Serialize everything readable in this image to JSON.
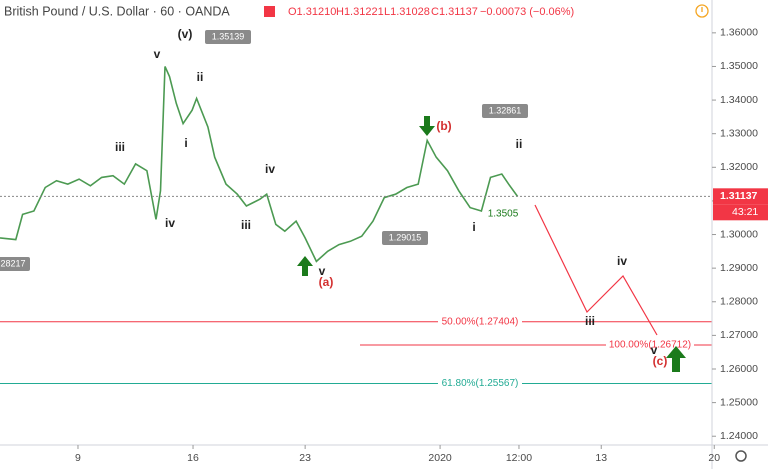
{
  "chart_data": {
    "type": "line",
    "title": "British Pound / U.S. Dollar · 60 · OANDA",
    "ohlc": [
      "O1.31210",
      "H1.31221",
      "L1.31028",
      "C1.31137",
      "−0.00073 (−0.06%)"
    ],
    "x": [
      0,
      0.7,
      1.0,
      1.5,
      2.0,
      2.5,
      3.0,
      3.5,
      4.0,
      4.5,
      5.0,
      5.5,
      6.0,
      6.5,
      6.9,
      7.1,
      7.3,
      7.5,
      7.8,
      8.1,
      8.5,
      8.7,
      9.2,
      9.5,
      10.0,
      10.5,
      10.9,
      11.5,
      11.8,
      12.2,
      12.6,
      13.1,
      13.5,
      14.0,
      14.5,
      15.0,
      15.5,
      16.0,
      16.5,
      17.0,
      17.5,
      18.0,
      18.5,
      18.9,
      19.3,
      19.8,
      20.3,
      20.8,
      21.3,
      21.7,
      22.2,
      22.5,
      22.9
    ],
    "values": [
      1.299,
      1.2985,
      1.306,
      1.307,
      1.314,
      1.316,
      1.315,
      1.3165,
      1.3145,
      1.317,
      1.3175,
      1.315,
      1.321,
      1.319,
      1.3045,
      1.313,
      1.35,
      1.347,
      1.339,
      1.333,
      1.337,
      1.3405,
      1.332,
      1.323,
      1.315,
      1.312,
      1.3085,
      1.3105,
      1.312,
      1.303,
      1.301,
      1.304,
      1.299,
      1.292,
      1.295,
      1.297,
      1.298,
      1.2995,
      1.304,
      1.311,
      1.312,
      1.314,
      1.315,
      1.328,
      1.323,
      1.319,
      1.313,
      1.308,
      1.307,
      1.317,
      1.318,
      1.315,
      1.3113
    ],
    "color": "#4c9a52",
    "xlim": [
      0,
      31.5
    ],
    "xticks": [
      {
        "value": 3.45,
        "label": "9"
      },
      {
        "value": 8.54,
        "label": "16"
      },
      {
        "value": 13.5,
        "label": "23"
      },
      {
        "value": 19.47,
        "label": "2020"
      },
      {
        "value": 22.96,
        "label": "12:00"
      },
      {
        "value": 26.6,
        "label": "13"
      },
      {
        "value": 31.6,
        "label": "20"
      }
    ],
    "ylim": [
      1.23739,
      1.36977
    ],
    "yticks": [
      {
        "value": 1.24,
        "label": "1.24000"
      },
      {
        "value": 1.25,
        "label": "1.25000"
      },
      {
        "value": 1.26,
        "label": "1.26000"
      },
      {
        "value": 1.27,
        "label": "1.27000"
      },
      {
        "value": 1.28,
        "label": "1.28000"
      },
      {
        "value": 1.29,
        "label": "1.29000"
      },
      {
        "value": 1.3,
        "label": "1.30000"
      },
      {
        "value": 1.31,
        "label": "1.31000"
      },
      {
        "value": 1.32,
        "label": "1.32000"
      },
      {
        "value": 1.33,
        "label": "1.33000"
      },
      {
        "value": 1.34,
        "label": "1.34000"
      },
      {
        "value": 1.35,
        "label": "1.35000"
      },
      {
        "value": 1.36,
        "label": "1.36000"
      }
    ],
    "grid": false,
    "last_price": {
      "value": 1.31137,
      "label": "1.31137"
    },
    "countdown": "43:21",
    "fib_levels": [
      {
        "value": 1.27404,
        "label": "50.00%(1.27404)",
        "color": "#f23645"
      },
      {
        "value": 1.26712,
        "label": "100.00%(1.26712)",
        "color": "#f23645"
      },
      {
        "value": 1.25567,
        "label": "61.80%(1.25567)",
        "color": "#22ab94"
      }
    ],
    "price_callouts": [
      "1.35139",
      "1.29015",
      "1.32861",
      "28217"
    ],
    "wave_labels": [
      "(v)",
      "v",
      "ii",
      "iii",
      "i",
      "iv",
      "iii",
      "iv",
      "v",
      "(a)",
      "(b)",
      "ii",
      "i",
      "iv",
      "iii",
      "v",
      "(c)"
    ],
    "note": "1.3505"
  }
}
